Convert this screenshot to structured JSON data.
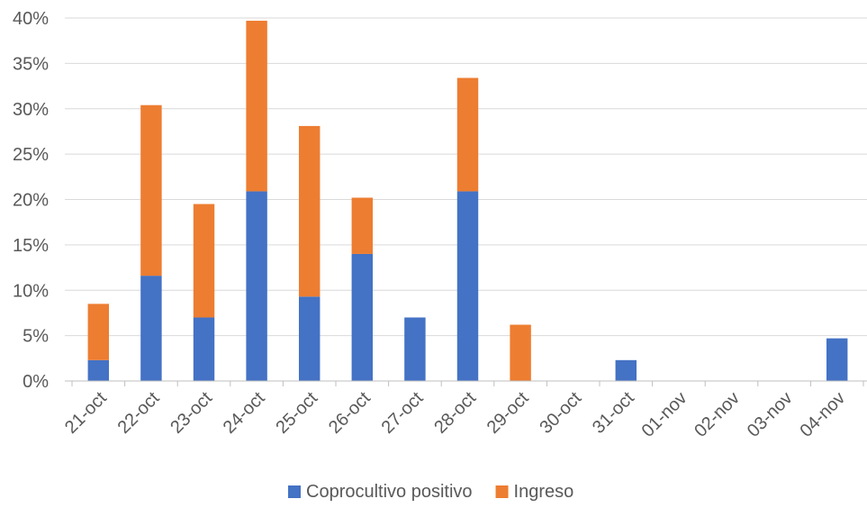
{
  "chart_data": {
    "type": "bar",
    "stacked": true,
    "categories": [
      "21-oct",
      "22-oct",
      "23-oct",
      "24-oct",
      "25-oct",
      "26-oct",
      "27-oct",
      "28-oct",
      "29-oct",
      "30-oct",
      "31-oct",
      "01-nov",
      "02-nov",
      "03-nov",
      "04-nov"
    ],
    "series": [
      {
        "name": "Coprocultivo positivo",
        "color": "#4472C4",
        "values": [
          2.3,
          11.6,
          7.0,
          20.9,
          9.3,
          14.0,
          7.0,
          20.9,
          0,
          0,
          2.3,
          0,
          0,
          0,
          4.7
        ]
      },
      {
        "name": "Ingreso",
        "color": "#ED7D31",
        "values": [
          6.2,
          18.8,
          12.5,
          18.8,
          18.8,
          6.2,
          0,
          12.5,
          6.2,
          0,
          0,
          0,
          0,
          0,
          0
        ]
      }
    ],
    "yticks": [
      "0%",
      "5%",
      "10%",
      "15%",
      "20%",
      "25%",
      "30%",
      "35%",
      "40%"
    ],
    "ylim": [
      0,
      40
    ],
    "yunit": "%",
    "grid": true,
    "legend_position": "bottom",
    "title": "",
    "xlabel": "",
    "ylabel": ""
  }
}
